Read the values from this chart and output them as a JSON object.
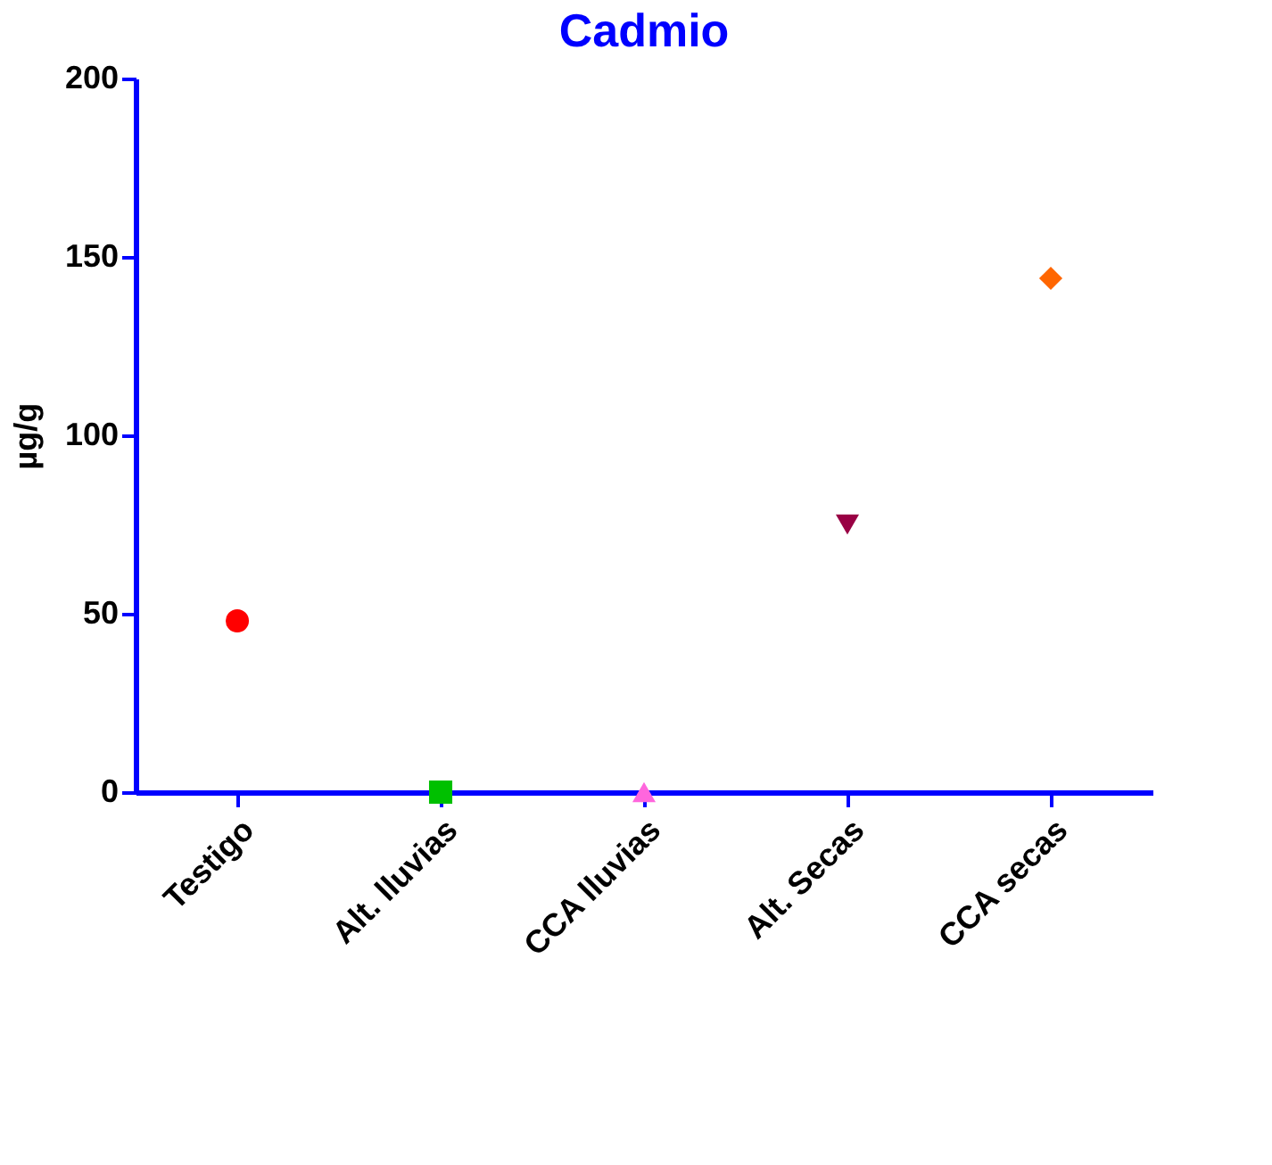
{
  "chart_data": {
    "type": "scatter",
    "title": "Cadmio",
    "ylabel": "µg/g",
    "categories": [
      "Testigo",
      "Alt. lluvias",
      "CCA lluvias",
      "Alt. Secas",
      "CCA secas"
    ],
    "series": [
      {
        "color": "#ff0000",
        "marker": "circle",
        "values": [
          48,
          null,
          null,
          null,
          null
        ]
      },
      {
        "color": "#00c000",
        "marker": "square",
        "values": [
          null,
          0,
          null,
          null,
          null
        ]
      },
      {
        "color": "#ff66dd",
        "marker": "triangle",
        "values": [
          null,
          null,
          0,
          null,
          null
        ]
      },
      {
        "color": "#990044",
        "marker": "triangle-down",
        "values": [
          null,
          null,
          null,
          75,
          null
        ]
      },
      {
        "color": "#ff6600",
        "marker": "diamond",
        "values": [
          null,
          null,
          null,
          null,
          144
        ]
      }
    ],
    "ylim": [
      0,
      200
    ],
    "yticks": [
      0,
      50,
      100,
      150,
      200
    ],
    "grid": false
  }
}
